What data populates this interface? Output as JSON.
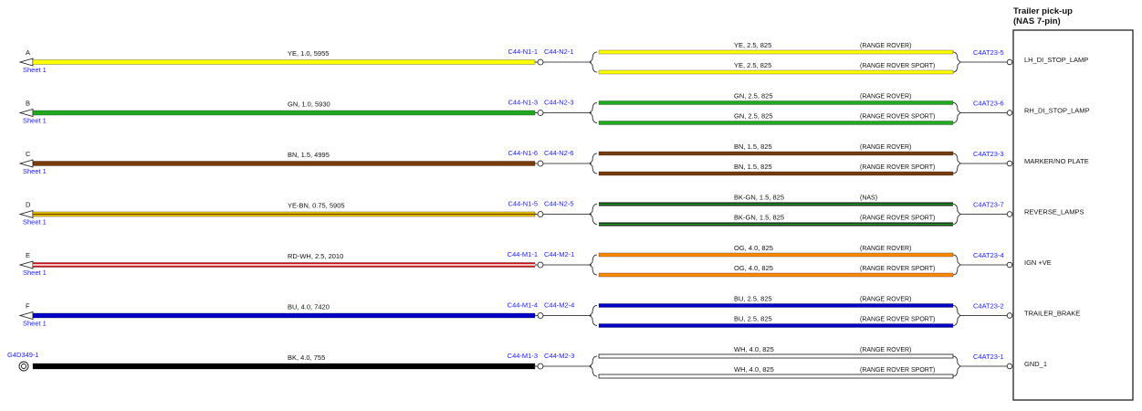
{
  "connector": {
    "title_line1": "Trailer pick-up",
    "title_line2": "(NAS 7-pin)"
  },
  "colors": {
    "YE": "#ffff00",
    "GN": "#21a821",
    "BN": "#7a3b0b",
    "YE-BN": "#ffe000",
    "BN-stripe": "#7a3b0b",
    "BK-GN": "#111111",
    "GN-stripe": "#21a821",
    "RD-WH": "#ffffff",
    "RD": "#d01010",
    "OG": "#ff8800",
    "BU": "#0000c8",
    "BK": "#000000",
    "WH": "#ffffff",
    "link_blue": "#1a1aff"
  },
  "circuits": [
    {
      "letter": "A",
      "sheet": "Sheet 1",
      "wire": "YE, 1.0, 5955",
      "color": "YE",
      "conn_left": "C44-N1-1",
      "conn_right": "C44-N2-1",
      "branch_top": "YE, 2.5, 825",
      "note_top": "(RANGE ROVER)",
      "branch_bottom": "YE, 2.5, 825",
      "note_bottom": "(RANGE ROVER SPORT)",
      "branch_color": "YE",
      "pin": "C4AT23-5",
      "function": "LH_DI_STOP_LAMP"
    },
    {
      "letter": "B",
      "sheet": "Sheet 1",
      "wire": "GN, 1.0, 5930",
      "color": "GN",
      "conn_left": "C44-N1-3",
      "conn_right": "C44-N2-3",
      "branch_top": "GN, 2.5, 825",
      "note_top": "(RANGE ROVER)",
      "branch_bottom": "GN, 2.5, 825",
      "note_bottom": "(RANGE ROVER SPORT)",
      "branch_color": "GN",
      "pin": "C4AT23-6",
      "function": "RH_DI_STOP_LAMP"
    },
    {
      "letter": "C",
      "sheet": "Sheet 1",
      "wire": "BN, 1.5, 4995",
      "color": "BN",
      "conn_left": "C44-N1-6",
      "conn_right": "C44-N2-6",
      "branch_top": "BN, 1.5, 825",
      "note_top": "(RANGE ROVER)",
      "branch_bottom": "BN, 1.5, 825",
      "note_bottom": "(RANGE ROVER SPORT)",
      "branch_color": "BN",
      "pin": "C4AT23-3",
      "function": "MARKER/NO PLATE"
    },
    {
      "letter": "D",
      "sheet": "Sheet 1",
      "wire": "YE-BN, 0.75, 5905",
      "color": "YE-BN",
      "conn_left": "C44-N1-5",
      "conn_right": "C44-N2-5",
      "branch_top": "BK-GN, 1.5, 825",
      "note_top": "(NAS)",
      "branch_bottom": "BK-GN, 1.5, 825",
      "note_bottom": "(RANGE ROVER SPORT)",
      "branch_color": "BK-GN",
      "pin": "C4AT23-7",
      "function": "REVERSE_LAMPS"
    },
    {
      "letter": "E",
      "sheet": "Sheet 1",
      "wire": "RD-WH, 2.5, 2010",
      "color": "RD-WH",
      "conn_left": "C44-M1-1",
      "conn_right": "C44-M2-1",
      "branch_top": "OG, 4.0, 825",
      "note_top": "(RANGE ROVER)",
      "branch_bottom": "OG, 4.0, 825",
      "note_bottom": "(RANGE ROVER SPORT)",
      "branch_color": "OG",
      "pin": "C4AT23-4",
      "function": "IGN +VE"
    },
    {
      "letter": "F",
      "sheet": "Sheet 1",
      "wire": "BU, 4.0, 7420",
      "color": "BU",
      "conn_left": "C44-M1-4",
      "conn_right": "C44-M2-4",
      "branch_top": "BU, 2.5, 825",
      "note_top": "(RANGE ROVER)",
      "branch_bottom": "BU, 2.5, 825",
      "note_bottom": "(RANGE ROVER SPORT)",
      "branch_color": "BU",
      "pin": "C4AT23-2",
      "function": "TRAILER_BRAKE"
    },
    {
      "ground": "G4D349-1",
      "wire": "BK, 4.0, 755",
      "color": "BK",
      "conn_left": "C44-M1-3",
      "conn_right": "C44-M2-3",
      "branch_top": "WH, 4.0, 825",
      "note_top": "(RANGE ROVER)",
      "branch_bottom": "WH, 4.0, 825",
      "note_bottom": "(RANGE ROVER SPORT)",
      "branch_color": "WH",
      "pin": "C4AT23-1",
      "function": "GND_1"
    }
  ]
}
